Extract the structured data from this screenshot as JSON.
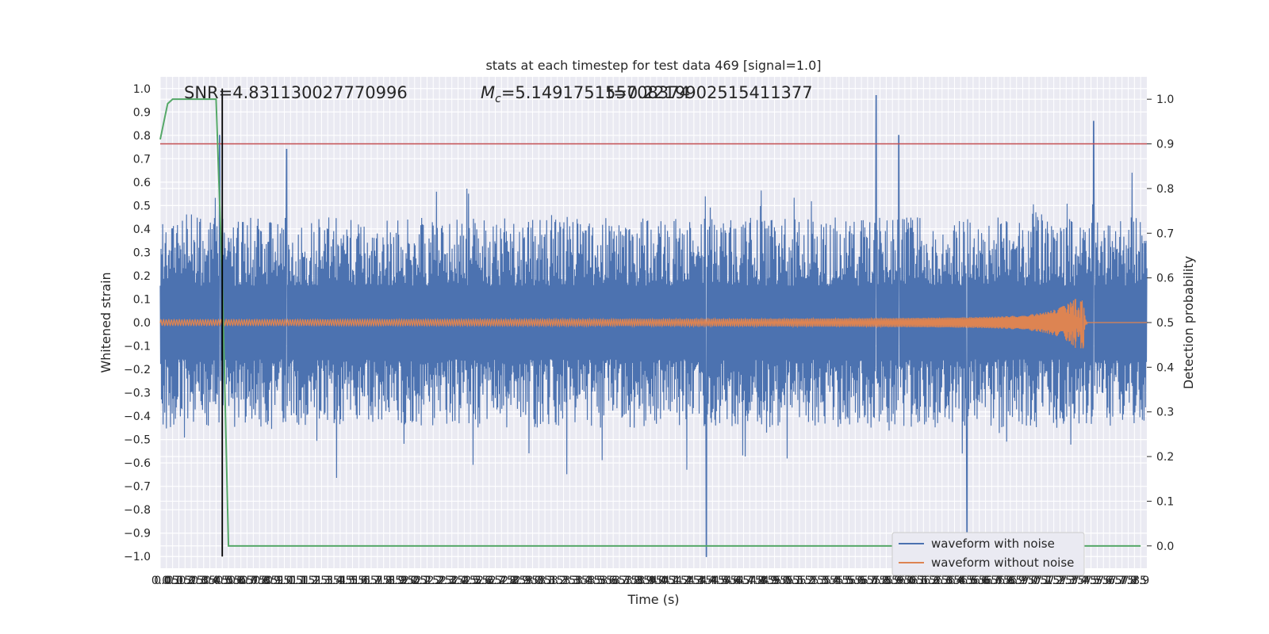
{
  "chart_data": {
    "type": "line",
    "title": "stats at each timestep for test data 469 [signal=1.0]",
    "xlabel": "Time (s)",
    "ylabel_left": "Whitened strain",
    "ylabel_right": "Detection probability",
    "xlim": [
      0.0,
      7.95
    ],
    "ylim_left": [
      -1.05,
      1.05
    ],
    "ylim_right": [
      -0.05,
      1.05
    ],
    "x_tick_step": 0.05,
    "x_tick_labels": [
      "0.0",
      "0.05",
      "0.1",
      "0.15",
      "0.2",
      "0.25",
      "0.3",
      "0.35",
      "0.4",
      "0.45",
      "0.5",
      "0.55",
      "0.6",
      "0.65",
      "0.7",
      "0.75",
      "0.8",
      "0.85",
      "0.9",
      "0.95",
      "1.0",
      "1.05",
      "1.1",
      "1.15",
      "1.2",
      "1.25",
      "1.3",
      "1.35",
      "1.4",
      "1.45",
      "1.5",
      "1.55",
      "1.6",
      "1.65",
      "1.7",
      "1.75",
      "1.8",
      "1.85",
      "1.9",
      "1.95",
      "2.0",
      "2.05",
      "2.1",
      "2.15",
      "2.2",
      "2.25",
      "2.3",
      "2.35",
      "2.4",
      "2.45",
      "2.5",
      "2.55",
      "2.6",
      "2.65",
      "2.7",
      "2.75",
      "2.8",
      "2.85",
      "2.9",
      "2.95",
      "3.0",
      "3.05",
      "3.1",
      "3.15",
      "3.2",
      "3.25",
      "3.3",
      "3.35",
      "3.4",
      "3.45",
      "3.5",
      "3.55",
      "3.6",
      "3.65",
      "3.7",
      "3.75",
      "3.8",
      "3.85",
      "3.9",
      "3.95",
      "4.0",
      "4.05",
      "4.1",
      "4.15",
      "4.2",
      "4.25",
      "4.3",
      "4.35",
      "4.4",
      "4.45",
      "4.5",
      "4.55",
      "4.6",
      "4.65",
      "4.7",
      "4.75",
      "4.8",
      "4.85",
      "4.9",
      "4.95",
      "5.0",
      "5.05",
      "5.1",
      "5.15",
      "5.2",
      "5.25",
      "5.3",
      "5.35",
      "5.4",
      "5.45",
      "5.5",
      "5.55",
      "5.6",
      "5.65",
      "5.7",
      "5.75",
      "5.8",
      "5.85",
      "5.9",
      "5.95",
      "6.0",
      "6.05",
      "6.1",
      "6.15",
      "6.2",
      "6.25",
      "6.3",
      "6.35",
      "6.4",
      "6.45",
      "6.5",
      "6.55",
      "6.6",
      "6.65",
      "6.7",
      "6.75",
      "6.8",
      "6.85",
      "6.9",
      "6.95",
      "7.0",
      "7.05",
      "7.1",
      "7.15",
      "7.2",
      "7.25",
      "7.3",
      "7.35",
      "7.4",
      "7.45",
      "7.5",
      "7.55",
      "7.6",
      "7.65",
      "7.7",
      "7.75",
      "7.8",
      "7.85",
      "7.9"
    ],
    "y_left_ticks": [
      1.0,
      0.9,
      0.8,
      0.7,
      0.6,
      0.5,
      0.4,
      0.3,
      0.2,
      0.1,
      0.0,
      -0.1,
      -0.2,
      -0.3,
      -0.4,
      -0.5,
      -0.6,
      -0.7,
      -0.8,
      -0.9,
      -1.0
    ],
    "y_left_tick_labels": [
      "1.0",
      "0.9",
      "0.8",
      "0.7",
      "0.6",
      "0.5",
      "0.4",
      "0.3",
      "0.2",
      "0.1",
      "0.0",
      "−0.1",
      "−0.2",
      "−0.3",
      "−0.4",
      "−0.5",
      "−0.6",
      "−0.7",
      "−0.8",
      "−0.9",
      "−1.0"
    ],
    "y_right_ticks": [
      1.0,
      0.9,
      0.8,
      0.7,
      0.6,
      0.5,
      0.4,
      0.3,
      0.2,
      0.1,
      0.0
    ],
    "y_right_tick_labels": [
      "1.0",
      "0.9",
      "0.8",
      "0.7",
      "0.6",
      "0.5",
      "0.4",
      "0.3",
      "0.2",
      "0.1",
      "0.0"
    ],
    "grid": true,
    "legend_position": "bottom-right",
    "series": [
      {
        "name": "waveform with noise",
        "axis": "left",
        "color": "#4c72b0",
        "kind": "noisy-strain",
        "typical_envelope": [
          -0.45,
          0.45
        ],
        "notable_extremes": [
          {
            "x": 0.48,
            "y": 0.8
          },
          {
            "x": 1.02,
            "y": 0.74
          },
          {
            "x": 4.4,
            "y": -1.0
          },
          {
            "x": 5.77,
            "y": 0.97
          },
          {
            "x": 5.95,
            "y": 0.8
          },
          {
            "x": 6.5,
            "y": -0.95
          },
          {
            "x": 7.52,
            "y": 0.86
          }
        ]
      },
      {
        "name": "waveform without noise",
        "axis": "left",
        "color": "#dd8452",
        "kind": "chirp",
        "initial_amplitude": 0.012,
        "peak_amplitude": 0.11,
        "merger_time": 7.44,
        "ringdown_end": 7.47
      },
      {
        "axis": "right",
        "color": "#55a868",
        "x": [
          0.0,
          0.06,
          0.1,
          0.15,
          0.2,
          0.25,
          0.3,
          0.35,
          0.4,
          0.45,
          0.5,
          0.55,
          0.6,
          0.65,
          0.7,
          0.75,
          0.8,
          0.85,
          0.9,
          0.95,
          1.0,
          1.05,
          1.1,
          1.15,
          1.2,
          1.25,
          1.3,
          1.35,
          1.4,
          1.45,
          1.5,
          1.55,
          1.6,
          2.0,
          3.0,
          4.0,
          5.0,
          6.0,
          7.0,
          7.9
        ],
        "y": [
          0.91,
          0.99,
          1.0,
          1.0,
          1.0,
          1.0,
          1.0,
          1.0,
          1.0,
          1.0,
          0.6,
          0.0,
          0.0,
          0.0,
          0.0,
          0.0,
          0.0,
          0.0,
          0.0,
          0.0,
          0.0,
          0.0,
          0.0,
          0.0,
          0.0,
          0.0,
          0.0,
          0.0,
          0.0,
          0.0,
          0.0,
          0.0,
          0.0,
          0.0,
          0.0,
          0.0,
          0.0,
          0.0,
          0.0,
          0.0
        ]
      }
    ],
    "threshold_line": {
      "axis": "right",
      "y": 0.9,
      "color": "#c44e52"
    },
    "marker_line": {
      "x": 0.5,
      "y_range": [
        -1.0,
        1.0
      ],
      "color": "#000000"
    },
    "annotations": [
      "SNR=4.831130027770996",
      "M_c=5.149175155708374",
      "t=0.2219902515411377"
    ],
    "colors": {
      "plot_background": "#eaeaf2",
      "grid": "#ffffff"
    }
  },
  "legend": {
    "items": [
      {
        "label": "waveform with noise",
        "color": "#4c72b0"
      },
      {
        "label": "waveform without noise",
        "color": "#dd8452"
      }
    ]
  }
}
